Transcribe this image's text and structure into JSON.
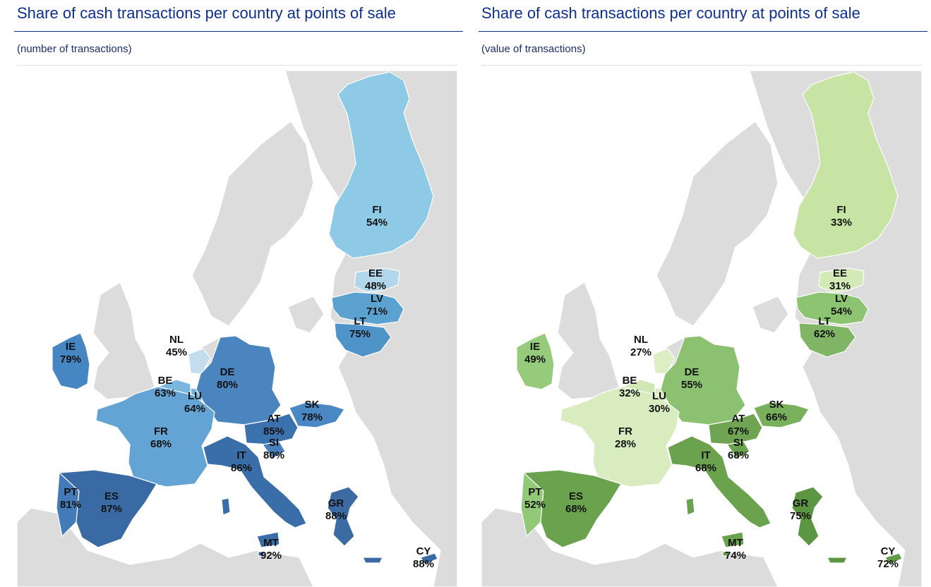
{
  "panels": [
    {
      "title": "Share of cash transactions per country at points of sale",
      "subtitle": "(number of transactions)",
      "countries": [
        {
          "code": "FI",
          "value": "54%",
          "color": "#8ecae6"
        },
        {
          "code": "EE",
          "value": "48%",
          "color": "#b2d6ea"
        },
        {
          "code": "LV",
          "value": "71%",
          "color": "#5ca2d0"
        },
        {
          "code": "LT",
          "value": "75%",
          "color": "#4f94c9"
        },
        {
          "code": "IE",
          "value": "79%",
          "color": "#4686c2"
        },
        {
          "code": "NL",
          "value": "45%",
          "color": "#c3dcee"
        },
        {
          "code": "BE",
          "value": "63%",
          "color": "#7bb6df"
        },
        {
          "code": "LU",
          "value": "64%",
          "color": "#74b1dc"
        },
        {
          "code": "DE",
          "value": "80%",
          "color": "#4a85c0"
        },
        {
          "code": "SK",
          "value": "78%",
          "color": "#4a88c4"
        },
        {
          "code": "FR",
          "value": "68%",
          "color": "#64a4d4"
        },
        {
          "code": "AT",
          "value": "85%",
          "color": "#3b71ac"
        },
        {
          "code": "SI",
          "value": "80%",
          "color": "#4a7fbb"
        },
        {
          "code": "IT",
          "value": "86%",
          "color": "#3a6ea8"
        },
        {
          "code": "PT",
          "value": "81%",
          "color": "#427bb8"
        },
        {
          "code": "ES",
          "value": "87%",
          "color": "#3a6aa4"
        },
        {
          "code": "GR",
          "value": "88%",
          "color": "#3c6aa2"
        },
        {
          "code": "MT",
          "value": "92%",
          "color": "#335f99"
        },
        {
          "code": "CY",
          "value": "88%",
          "color": "#3c6aa2"
        }
      ]
    },
    {
      "title": "Share of cash transactions per country at points of sale",
      "subtitle": "(value of transactions)",
      "countries": [
        {
          "code": "FI",
          "value": "33%",
          "color": "#c8e4a4"
        },
        {
          "code": "EE",
          "value": "31%",
          "color": "#d3e9b6"
        },
        {
          "code": "LV",
          "value": "54%",
          "color": "#8dc472"
        },
        {
          "code": "LT",
          "value": "62%",
          "color": "#7fb565"
        },
        {
          "code": "IE",
          "value": "49%",
          "color": "#96cb7c"
        },
        {
          "code": "NL",
          "value": "27%",
          "color": "#dbeec4"
        },
        {
          "code": "BE",
          "value": "32%",
          "color": "#d2e8b4"
        },
        {
          "code": "LU",
          "value": "30%",
          "color": "#d6eabb"
        },
        {
          "code": "DE",
          "value": "55%",
          "color": "#8bc170"
        },
        {
          "code": "SK",
          "value": "66%",
          "color": "#78b05c"
        },
        {
          "code": "FR",
          "value": "28%",
          "color": "#d9ecc0"
        },
        {
          "code": "AT",
          "value": "67%",
          "color": "#6fa552"
        },
        {
          "code": "SI",
          "value": "68%",
          "color": "#6aa24e"
        },
        {
          "code": "IT",
          "value": "68%",
          "color": "#6aa24e"
        },
        {
          "code": "PT",
          "value": "52%",
          "color": "#92c878"
        },
        {
          "code": "ES",
          "value": "68%",
          "color": "#6aa24e"
        },
        {
          "code": "GR",
          "value": "75%",
          "color": "#5d9643"
        },
        {
          "code": "MT",
          "value": "74%",
          "color": "#5f9845"
        },
        {
          "code": "CY",
          "value": "72%",
          "color": "#639b48"
        }
      ]
    }
  ]
}
